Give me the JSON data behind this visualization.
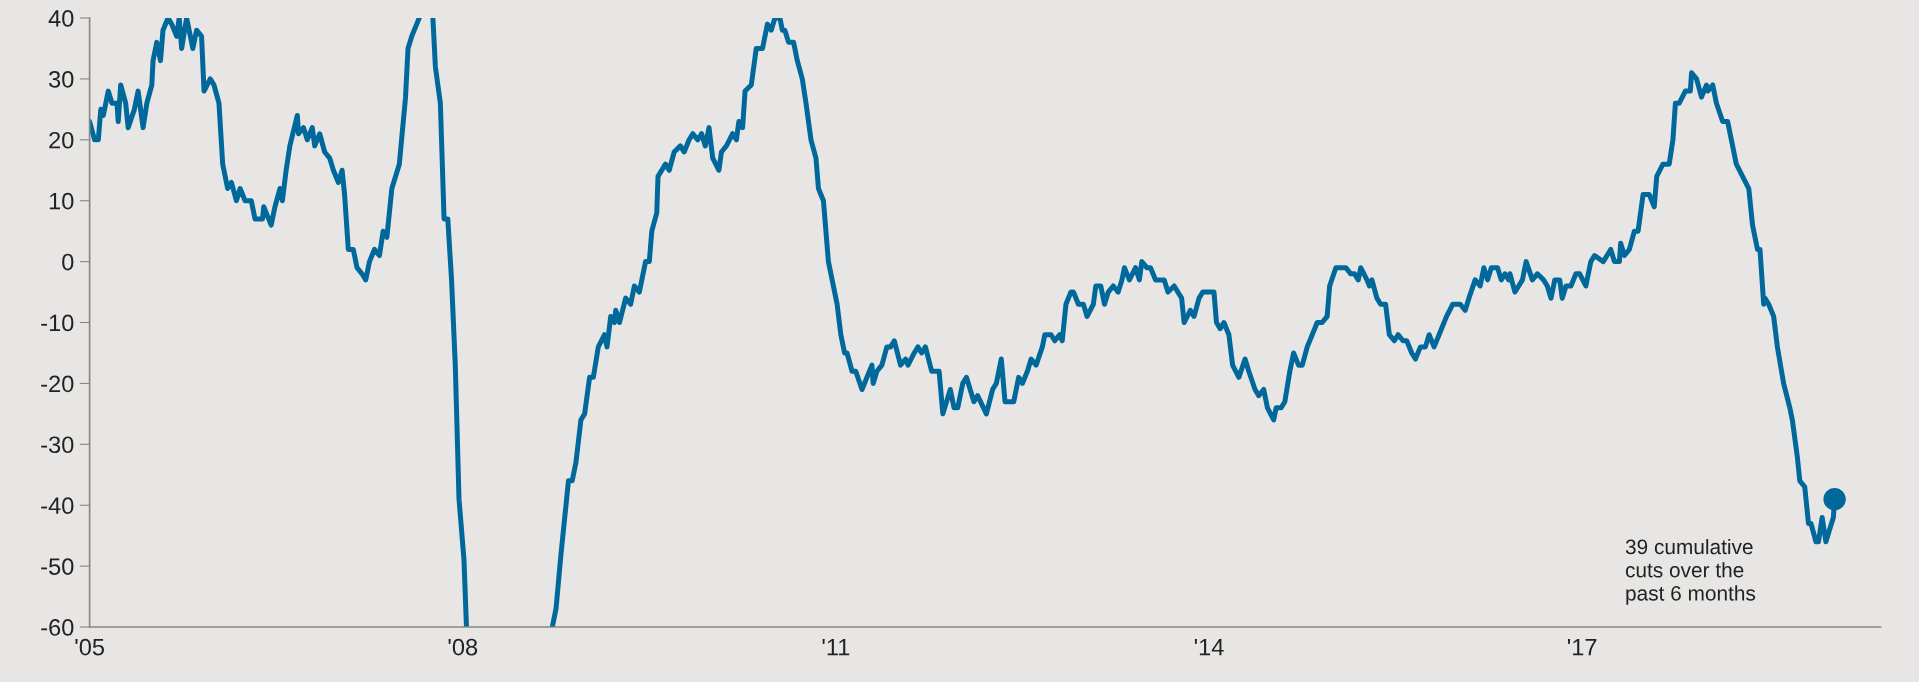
{
  "chart_data": {
    "type": "line",
    "xlim": [
      2005,
      2019.4
    ],
    "xticks": [
      {
        "value": 2005,
        "label": "'05"
      },
      {
        "value": 2008,
        "label": "'08"
      },
      {
        "value": 2011,
        "label": "'11"
      },
      {
        "value": 2014,
        "label": "'14"
      },
      {
        "value": 2017,
        "label": "'17"
      }
    ],
    "ylim": [
      -60,
      40
    ],
    "yticks": [
      -60,
      -50,
      -40,
      -30,
      -20,
      -10,
      0,
      10,
      20,
      30,
      40
    ],
    "grid": false,
    "series": [
      {
        "color": "#00689a",
        "x": [
          2005.0,
          2005.04,
          2005.07,
          2005.09,
          2005.11,
          2005.15,
          2005.18,
          2005.22,
          2005.23,
          2005.25,
          2005.29,
          2005.31,
          2005.36,
          2005.39,
          2005.43,
          2005.46,
          2005.5,
          2005.51,
          2005.54,
          2005.57,
          2005.59,
          2005.63,
          2005.66,
          2005.7,
          2005.72,
          2005.74,
          2005.78,
          2005.83,
          2005.86,
          2005.9,
          2005.92,
          2005.97,
          2006.0,
          2006.04,
          2006.07,
          2006.11,
          2006.14,
          2006.18,
          2006.21,
          2006.25,
          2006.3,
          2006.33,
          2006.39,
          2006.4,
          2006.46,
          2006.49,
          2006.53,
          2006.55,
          2006.58,
          2006.61,
          2006.67,
          2006.68,
          2006.72,
          2006.75,
          2006.79,
          2006.81,
          2006.85,
          2006.89,
          2006.93,
          2006.96,
          2007.0,
          2007.03,
          2007.05,
          2007.08,
          2007.12,
          2007.15,
          2007.19,
          2007.22,
          2007.25,
          2007.29,
          2007.33,
          2007.36,
          2007.39,
          2007.43,
          2007.49,
          2007.54,
          2007.56,
          2007.59,
          2007.63,
          2007.65,
          2007.7,
          2007.76,
          2007.78,
          2007.82,
          2007.85,
          2007.88,
          2007.91,
          2007.94,
          2007.97,
          2008.01,
          2008.03,
          2008.4,
          2008.72,
          2008.75,
          2008.79,
          2008.85,
          2008.88,
          2008.91,
          2008.95,
          2008.98,
          2009.02,
          2009.05,
          2009.09,
          2009.14,
          2009.16,
          2009.19,
          2009.22,
          2009.23,
          2009.26,
          2009.31,
          2009.35,
          2009.38,
          2009.42,
          2009.47,
          2009.5,
          2009.52,
          2009.56,
          2009.57,
          2009.63,
          2009.66,
          2009.7,
          2009.75,
          2009.78,
          2009.82,
          2009.85,
          2009.89,
          2009.92,
          2009.95,
          2009.98,
          2010.01,
          2010.06,
          2010.08,
          2010.12,
          2010.17,
          2010.2,
          2010.22,
          2010.25,
          2010.27,
          2010.32,
          2010.36,
          2010.38,
          2010.41,
          2010.45,
          2010.48,
          2010.51,
          2010.55,
          2010.57,
          2010.59,
          2010.62,
          2010.66,
          2010.69,
          2010.73,
          2010.76,
          2010.8,
          2010.84,
          2010.86,
          2010.9,
          2010.94,
          2010.96,
          2011.01,
          2011.04,
          2011.07,
          2011.09,
          2011.13,
          2011.16,
          2011.21,
          2011.29,
          2011.3,
          2011.33,
          2011.37,
          2011.41,
          2011.44,
          2011.47,
          2011.52,
          2011.56,
          2011.58,
          2011.63,
          2011.66,
          2011.69,
          2011.72,
          2011.77,
          2011.83,
          2011.86,
          2011.92,
          2011.95,
          2011.98,
          2012.02,
          2012.05,
          2012.11,
          2012.14,
          2012.21,
          2012.26,
          2012.29,
          2012.33,
          2012.36,
          2012.4,
          2012.43,
          2012.47,
          2012.5,
          2012.54,
          2012.57,
          2012.61,
          2012.66,
          2012.68,
          2012.73,
          2012.76,
          2012.8,
          2012.82,
          2012.85,
          2012.89,
          2012.91,
          2012.95,
          2012.99,
          2013.02,
          2013.07,
          2013.09,
          2013.13,
          2013.16,
          2013.19,
          2013.23,
          2013.27,
          2013.3,
          2013.32,
          2013.36,
          2013.41,
          2013.44,
          2013.46,
          2013.5,
          2013.53,
          2013.57,
          2013.64,
          2013.67,
          2013.72,
          2013.78,
          2013.8,
          2013.85,
          2013.88,
          2013.92,
          2013.95,
          2014.04,
          2014.06,
          2014.09,
          2014.12,
          2014.16,
          2014.19,
          2014.24,
          2014.29,
          2014.32,
          2014.37,
          2014.4,
          2014.44,
          2014.47,
          2014.52,
          2014.54,
          2014.58,
          2014.61,
          2014.65,
          2014.68,
          2014.72,
          2014.75,
          2014.79,
          2014.83,
          2014.87,
          2014.91,
          2014.95,
          2014.97,
          2015.02,
          2015.1,
          2015.14,
          2015.17,
          2015.2,
          2015.22,
          2015.27,
          2015.29,
          2015.31,
          2015.35,
          2015.38,
          2015.42,
          2015.45,
          2015.49,
          2015.52,
          2015.56,
          2015.59,
          2015.63,
          2015.66,
          2015.7,
          2015.74,
          2015.77,
          2015.81,
          2015.85,
          2015.91,
          2015.96,
          2016.0,
          2016.02,
          2016.06,
          2016.09,
          2016.14,
          2016.18,
          2016.21,
          2016.24,
          2016.27,
          2016.32,
          2016.35,
          2016.38,
          2016.41,
          2016.42,
          2016.46,
          2016.49,
          2016.52,
          2016.55,
          2016.6,
          2016.64,
          2016.69,
          2016.72,
          2016.75,
          2016.78,
          2016.82,
          2016.84,
          2016.87,
          2016.91,
          2016.95,
          2016.98,
          2017.03,
          2017.07,
          2017.1,
          2017.17,
          2017.23,
          2017.26,
          2017.3,
          2017.31,
          2017.34,
          2017.38,
          2017.42,
          2017.45,
          2017.49,
          2017.54,
          2017.58,
          2017.6,
          2017.65,
          2017.7,
          2017.73,
          2017.75,
          2017.78,
          2017.83,
          2017.87,
          2017.88,
          2017.92,
          2017.96,
          2018.0,
          2018.01,
          2018.05,
          2018.08,
          2018.13,
          2018.17,
          2018.2,
          2018.24,
          2018.29,
          2018.34,
          2018.37,
          2018.41,
          2018.43,
          2018.46,
          2018.47,
          2018.5,
          2018.54,
          2018.57,
          2018.62,
          2018.67,
          2018.69,
          2018.73,
          2018.75,
          2018.79,
          2018.82,
          2018.84,
          2018.88,
          2018.9,
          2018.93,
          2018.96,
          2018.99,
          2019.02,
          2019.03
        ],
        "values": [
          23,
          20,
          20,
          25,
          24,
          28,
          26,
          26,
          23,
          29,
          26,
          22,
          25,
          28,
          22,
          26,
          29,
          33,
          36,
          33,
          38,
          40,
          39,
          37,
          40,
          35,
          40,
          35,
          38,
          37,
          28,
          30,
          29,
          26,
          16,
          12,
          13,
          10,
          12,
          10,
          10,
          7,
          7,
          9,
          6,
          9,
          12,
          10,
          15,
          19,
          24,
          21,
          22,
          20,
          22,
          19,
          21,
          18,
          17,
          15,
          13,
          15,
          11,
          2,
          2,
          -1,
          -2,
          -3,
          0,
          2,
          1,
          5,
          4,
          12,
          16,
          27,
          35,
          37,
          39,
          40,
          null,
          40,
          32,
          26,
          7,
          7,
          -3,
          -17,
          -39,
          -49,
          -60,
          null,
          -60,
          -57,
          -48,
          -36,
          -36,
          -33,
          -26,
          -25,
          -19,
          -19,
          -14,
          -12,
          -14,
          -9,
          -10,
          -8,
          -10,
          -6,
          -7,
          -4,
          -5,
          0,
          0,
          5,
          8,
          14,
          16,
          15,
          18,
          19,
          18,
          20,
          21,
          20,
          21,
          19,
          22,
          17,
          15,
          18,
          19,
          21,
          20,
          23,
          22,
          28,
          29,
          35,
          35,
          35,
          39,
          38,
          40,
          40,
          38,
          38,
          36,
          36,
          33,
          30,
          26,
          20,
          17,
          12,
          10,
          0,
          -2,
          -7,
          -12,
          -15,
          -15,
          -18,
          -18,
          -21,
          -17,
          -20,
          -18,
          -17,
          -14,
          -14,
          -13,
          -17,
          -16,
          -17,
          -15,
          -14,
          -15,
          -14,
          -18,
          -18,
          -25,
          -21,
          -24,
          -24,
          -20,
          -19,
          -23,
          -22,
          -25,
          -21,
          -20,
          -16,
          -23,
          -23,
          -23,
          -19,
          -20,
          -18,
          -16,
          -17,
          -14,
          -12,
          -12,
          -13,
          -12,
          -13,
          -7,
          -5,
          -5,
          -7,
          -7,
          -9,
          -7,
          -4,
          -4,
          -7,
          -5,
          -4,
          -5,
          -3,
          -1,
          -3,
          -1,
          -3,
          0,
          -1,
          -1,
          -3,
          -3,
          -5,
          -4,
          -6,
          -10,
          -8,
          -9,
          -6,
          -5,
          -5,
          -10,
          -11,
          -10,
          -12,
          -17,
          -19,
          -16,
          -18,
          -21,
          -22,
          -21,
          -24,
          -26,
          -24,
          -24,
          -23,
          -18,
          -15,
          -17,
          -17,
          -14,
          -12,
          -10,
          -10,
          -9,
          -4,
          -1,
          -1,
          -2,
          -2,
          -3,
          -1,
          -3,
          -4,
          -3,
          -6,
          -7,
          -7,
          -12,
          -13,
          -12,
          -13,
          -13,
          -15,
          -16,
          -14,
          -14,
          -12,
          -14,
          -12,
          -9,
          -7,
          -7,
          -7,
          -8,
          -6,
          -3,
          -4,
          -1,
          -3,
          -1,
          -1,
          -3,
          -2,
          -3,
          -2,
          -5,
          -4,
          -3,
          0,
          -3,
          -2,
          -3,
          -4,
          -6,
          -3,
          -3,
          -6,
          -4,
          -4,
          -2,
          -2,
          -4,
          0,
          1,
          0,
          2,
          0,
          0,
          3,
          1,
          2,
          5,
          5,
          11,
          11,
          9,
          14,
          16,
          16,
          20,
          26,
          26,
          28,
          28,
          31,
          30,
          27,
          29,
          28,
          29,
          26,
          23,
          23,
          20,
          16,
          14,
          12,
          6,
          2,
          2,
          -7,
          -6,
          -7,
          -9,
          -14,
          -20,
          -24,
          -26,
          -32,
          -36,
          -37,
          -43,
          -43,
          -46,
          -46,
          -42,
          -46,
          -44,
          -42,
          -39
        ]
      },
      {
        "type": "scatter",
        "color": "#00689a",
        "x": [
          2019.03
        ],
        "values": [
          -39
        ]
      }
    ],
    "annotations": [
      "39 cumulative\ncuts over the\npast 6 months"
    ]
  }
}
